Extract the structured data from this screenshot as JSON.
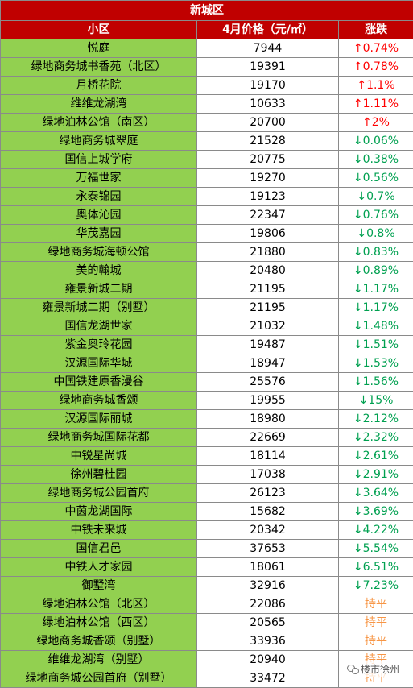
{
  "table": {
    "title": "新城区",
    "headers": {
      "name": "小区",
      "price": "4月价格（元/㎡）",
      "change": "涨跌"
    },
    "rows": [
      {
        "name": "悦庭",
        "price": "7944",
        "change": "↑0.74%",
        "trend": "up"
      },
      {
        "name": "绿地商务城书香苑（北区）",
        "price": "19391",
        "change": "↑0.78%",
        "trend": "up"
      },
      {
        "name": "月桥花院",
        "price": "19170",
        "change": "↑1.1%",
        "trend": "up"
      },
      {
        "name": "维维龙湖湾",
        "price": "10633",
        "change": "↑1.11%",
        "trend": "up"
      },
      {
        "name": "绿地泊林公馆（南区）",
        "price": "20700",
        "change": "↑2%",
        "trend": "up"
      },
      {
        "name": "绿地商务城翠庭",
        "price": "21528",
        "change": "↓0.06%",
        "trend": "down"
      },
      {
        "name": "国信上城学府",
        "price": "20775",
        "change": "↓0.38%",
        "trend": "down"
      },
      {
        "name": "万福世家",
        "price": "19270",
        "change": "↓0.56%",
        "trend": "down"
      },
      {
        "name": "永泰锦园",
        "price": "19123",
        "change": "↓0.7%",
        "trend": "down"
      },
      {
        "name": "奥体沁园",
        "price": "22347",
        "change": "↓0.76%",
        "trend": "down"
      },
      {
        "name": "华茂嘉园",
        "price": "19806",
        "change": "↓0.8%",
        "trend": "down"
      },
      {
        "name": "绿地商务城海顿公馆",
        "price": "21880",
        "change": "↓0.83%",
        "trend": "down"
      },
      {
        "name": "美的翰城",
        "price": "20480",
        "change": "↓0.89%",
        "trend": "down"
      },
      {
        "name": "雍景新城二期",
        "price": "21195",
        "change": "↓1.17%",
        "trend": "down"
      },
      {
        "name": "雍景新城二期（别墅）",
        "price": "21195",
        "change": "↓1.17%",
        "trend": "down"
      },
      {
        "name": "国信龙湖世家",
        "price": "21032",
        "change": "↓1.48%",
        "trend": "down"
      },
      {
        "name": "紫金奥玲花园",
        "price": "19487",
        "change": "↓1.51%",
        "trend": "down"
      },
      {
        "name": "汉源国际华城",
        "price": "18947",
        "change": "↓1.53%",
        "trend": "down"
      },
      {
        "name": "中国铁建原香漫谷",
        "price": "25576",
        "change": "↓1.56%",
        "trend": "down"
      },
      {
        "name": "绿地商务城香颂",
        "price": "19955",
        "change": "↓15%",
        "trend": "down"
      },
      {
        "name": "汉源国际丽城",
        "price": "18980",
        "change": "↓2.12%",
        "trend": "down"
      },
      {
        "name": "绿地商务城国际花都",
        "price": "22669",
        "change": "↓2.32%",
        "trend": "down"
      },
      {
        "name": "中锐星尚城",
        "price": "18114",
        "change": "↓2.61%",
        "trend": "down"
      },
      {
        "name": "徐州碧桂园",
        "price": "17038",
        "change": "↓2.91%",
        "trend": "down"
      },
      {
        "name": "绿地商务城公园首府",
        "price": "26123",
        "change": "↓3.64%",
        "trend": "down"
      },
      {
        "name": "中茵龙湖国际",
        "price": "15682",
        "change": "↓3.69%",
        "trend": "down"
      },
      {
        "name": "中铁未来城",
        "price": "20342",
        "change": "↓4.22%",
        "trend": "down"
      },
      {
        "name": "国信君邑",
        "price": "37653",
        "change": "↓5.54%",
        "trend": "down"
      },
      {
        "name": "中铁人才家园",
        "price": "18061",
        "change": "↓6.51%",
        "trend": "down"
      },
      {
        "name": "御墅湾",
        "price": "32916",
        "change": "↓7.23%",
        "trend": "down"
      },
      {
        "name": "绿地泊林公馆（北区）",
        "price": "22086",
        "change": "持平",
        "trend": "flat"
      },
      {
        "name": "绿地泊林公馆（西区）",
        "price": "20565",
        "change": "持平",
        "trend": "flat"
      },
      {
        "name": "绿地商务城香颂（别墅）",
        "price": "33936",
        "change": "持平",
        "trend": "flat"
      },
      {
        "name": "维维龙湖湾（别墅）",
        "price": "20940",
        "change": "持平",
        "trend": "flat"
      },
      {
        "name": "绿地商务城公园首府（别墅）",
        "price": "33472",
        "change": "持平",
        "trend": "flat"
      }
    ]
  },
  "watermark": {
    "icon": "wechat-icon",
    "text": "楼市徐州"
  },
  "colors": {
    "header_bg": "#c00000",
    "name_bg": "#92d050",
    "up": "#ff0000",
    "down": "#00a050",
    "flat": "#f79646"
  }
}
